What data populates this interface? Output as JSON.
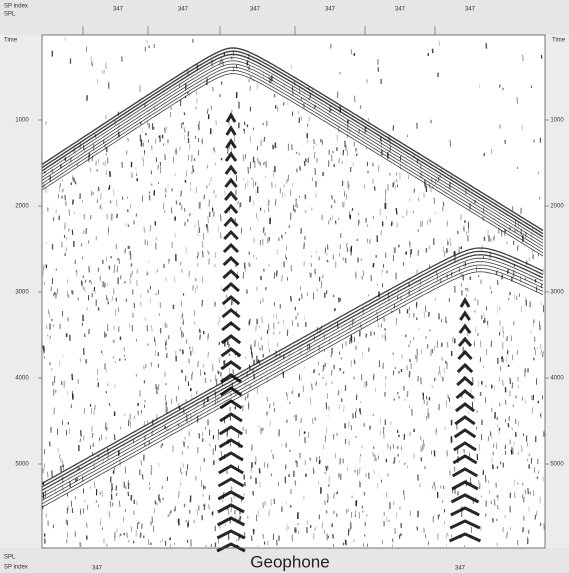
{
  "header": {
    "row_labels": [
      "SP index",
      "SPL"
    ],
    "shot_labels": [
      "347",
      "347",
      "347",
      "347",
      "347",
      "347"
    ]
  },
  "axis": {
    "title_left": "Time",
    "title_right": "Time",
    "ticks": [
      "1000",
      "2000",
      "3000",
      "4000",
      "5000"
    ]
  },
  "caption": "Geophone",
  "footer": {
    "row_labels": [
      "SPL",
      "SP index"
    ],
    "shot_labels": [
      "347",
      "347"
    ]
  }
}
